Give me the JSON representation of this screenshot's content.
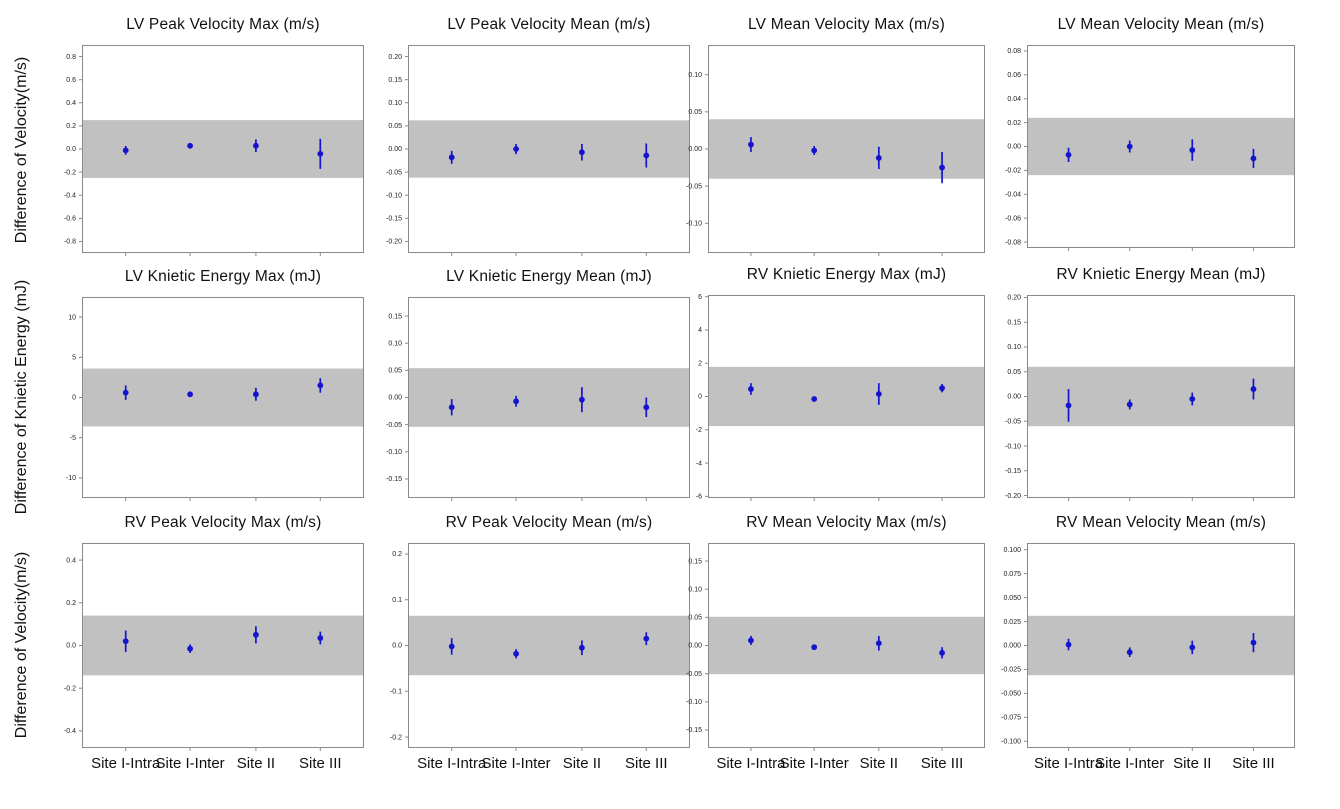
{
  "chart_data": {
    "type": "scatter",
    "subtype": "errorbar-grid",
    "grid": {
      "rows": 3,
      "cols": 4,
      "grid_lines": false,
      "legend": "none"
    },
    "categories": [
      "Site I-Intra",
      "Site I-Inter",
      "Site II",
      "Site III"
    ],
    "row_ylabels": [
      "Difference of Velocity(m/s)",
      "Difference of Knietic Energy (mJ)",
      "Difference of Velocity(m/s)"
    ],
    "style": {
      "marker_color": "#1414cf",
      "band_color": "#c1c1c1",
      "axis_color": "#8a8a8a",
      "tick_text_color": "#222222",
      "background": "#ffffff"
    },
    "charts": [
      {
        "title": "LV Peak Velocity Max (m/s)",
        "ylim": [
          -0.9,
          0.9
        ],
        "ytick_values": [
          0.8,
          0.6,
          0.4,
          0.2,
          0.0,
          -0.2,
          -0.4,
          -0.6,
          -0.8
        ],
        "ytick_labels": [
          "0.8",
          "0.6",
          "0.4",
          "0.2",
          "0.0",
          "-0.2",
          "-0.4",
          "-0.6",
          "-0.8"
        ],
        "band": [
          -0.25,
          0.25
        ],
        "means": [
          -0.012,
          0.028,
          0.028,
          -0.042
        ],
        "errors": [
          0.038,
          0.022,
          0.055,
          0.13
        ]
      },
      {
        "title": "LV Peak Velocity Mean (m/s)",
        "ylim": [
          -0.225,
          0.225
        ],
        "ytick_values": [
          0.2,
          0.15,
          0.1,
          0.05,
          0.0,
          -0.05,
          -0.1,
          -0.15,
          -0.2
        ],
        "ytick_labels": [
          "0.20",
          "0.15",
          "0.10",
          "0.05",
          "0.00",
          "-0.05",
          "-0.10",
          "-0.15",
          "-0.20"
        ],
        "band": [
          -0.062,
          0.062
        ],
        "means": [
          -0.018,
          0.0,
          -0.007,
          -0.014
        ],
        "errors": [
          0.014,
          0.011,
          0.018,
          0.026
        ]
      },
      {
        "title": "LV Mean Velocity Max (m/s)",
        "ylim": [
          -0.14,
          0.14
        ],
        "ytick_values": [
          0.1,
          0.05,
          0.0,
          -0.05,
          -0.1
        ],
        "ytick_labels": [
          "0.10",
          "0.05",
          "0.00",
          "-0.05",
          "-0.10"
        ],
        "band": [
          -0.04,
          0.04
        ],
        "means": [
          0.006,
          -0.002,
          -0.012,
          -0.025
        ],
        "errors": [
          0.01,
          0.006,
          0.015,
          0.021
        ]
      },
      {
        "title": "LV Mean Velocity Mean (m/s)",
        "ylim": [
          -0.085,
          0.085
        ],
        "ytick_values": [
          0.08,
          0.06,
          0.04,
          0.02,
          0.0,
          -0.02,
          -0.04,
          -0.06,
          -0.08
        ],
        "ytick_labels": [
          "0.08",
          "0.06",
          "0.04",
          "0.02",
          "0.00",
          "-0.02",
          "-0.04",
          "-0.06",
          "-0.08"
        ],
        "band": [
          -0.024,
          0.024
        ],
        "means": [
          -0.007,
          0.0,
          -0.003,
          -0.01
        ],
        "errors": [
          0.006,
          0.005,
          0.009,
          0.008
        ]
      },
      {
        "title": "LV Knietic Energy Max (mJ)",
        "ylim": [
          -12.5,
          12.5
        ],
        "ytick_values": [
          10,
          5,
          0,
          -5,
          -10
        ],
        "ytick_labels": [
          "10",
          "5",
          "0",
          "-5",
          "-10"
        ],
        "band": [
          -3.6,
          3.6
        ],
        "means": [
          0.6,
          0.4,
          0.4,
          1.5
        ],
        "errors": [
          0.9,
          0.35,
          0.8,
          0.9
        ]
      },
      {
        "title": "LV Knietic Energy Mean (mJ)",
        "ylim": [
          -0.185,
          0.185
        ],
        "ytick_values": [
          0.15,
          0.1,
          0.05,
          0.0,
          -0.05,
          -0.1,
          -0.15
        ],
        "ytick_labels": [
          "0.15",
          "0.10",
          "0.05",
          "0.00",
          "-0.05",
          "-0.10",
          "-0.15"
        ],
        "band": [
          -0.054,
          0.054
        ],
        "means": [
          -0.018,
          -0.007,
          -0.004,
          -0.018
        ],
        "errors": [
          0.015,
          0.01,
          0.023,
          0.018
        ]
      },
      {
        "title": "RV Knietic Energy Max (mJ)",
        "ylim": [
          -6.1,
          6.1
        ],
        "ytick_values": [
          6,
          4,
          2,
          0,
          -2,
          -4,
          -6
        ],
        "ytick_labels": [
          "6",
          "4",
          "2",
          "0",
          "-2",
          "-4",
          "-6"
        ],
        "band": [
          -1.78,
          1.78
        ],
        "means": [
          0.45,
          -0.15,
          0.15,
          0.5
        ],
        "errors": [
          0.35,
          0.15,
          0.65,
          0.25
        ]
      },
      {
        "title": "RV Knietic Energy Mean (mJ)",
        "ylim": [
          -0.205,
          0.205
        ],
        "ytick_values": [
          0.2,
          0.15,
          0.1,
          0.05,
          0.0,
          -0.05,
          -0.1,
          -0.15,
          -0.2
        ],
        "ytick_labels": [
          "0.20",
          "0.15",
          "0.10",
          "0.05",
          "0.00",
          "-0.05",
          "-0.10",
          "-0.15",
          "-0.20"
        ],
        "band": [
          -0.06,
          0.06
        ],
        "means": [
          -0.018,
          -0.016,
          -0.005,
          0.015
        ],
        "errors": [
          0.033,
          0.01,
          0.013,
          0.021
        ]
      },
      {
        "title": "RV Peak Velocity Max (m/s)",
        "ylim": [
          -0.48,
          0.48
        ],
        "ytick_values": [
          0.4,
          0.2,
          0.0,
          -0.2,
          -0.4
        ],
        "ytick_labels": [
          "0.4",
          "0.2",
          "0.0",
          "-0.2",
          "-0.4"
        ],
        "band": [
          -0.14,
          0.14
        ],
        "means": [
          0.02,
          -0.015,
          0.05,
          0.035
        ],
        "errors": [
          0.05,
          0.02,
          0.04,
          0.03
        ]
      },
      {
        "title": "RV Peak Velocity Mean (m/s)",
        "ylim": [
          -0.224,
          0.224
        ],
        "ytick_values": [
          0.2,
          0.1,
          0.0,
          -0.1,
          -0.2
        ],
        "ytick_labels": [
          "0.2",
          "0.1",
          "0.0",
          "-0.1",
          "-0.2"
        ],
        "band": [
          -0.065,
          0.065
        ],
        "means": [
          -0.002,
          -0.018,
          -0.005,
          0.015
        ],
        "errors": [
          0.018,
          0.01,
          0.016,
          0.014
        ]
      },
      {
        "title": "RV Mean Velocity Max (m/s)",
        "ylim": [
          -0.182,
          0.182
        ],
        "ytick_values": [
          0.15,
          0.1,
          0.05,
          0.0,
          -0.05,
          -0.1,
          -0.15
        ],
        "ytick_labels": [
          "0.15",
          "0.10",
          "0.05",
          "0.00",
          "-0.05",
          "-0.10",
          "-0.15"
        ],
        "band": [
          -0.051,
          0.051
        ],
        "means": [
          0.009,
          -0.003,
          0.004,
          -0.013
        ],
        "errors": [
          0.008,
          0.004,
          0.013,
          0.01
        ]
      },
      {
        "title": "RV Mean Velocity Mean (m/s)",
        "ylim": [
          -0.107,
          0.107
        ],
        "ytick_values": [
          0.1,
          0.075,
          0.05,
          0.025,
          0.0,
          -0.025,
          -0.05,
          -0.075,
          -0.1
        ],
        "ytick_labels": [
          "0.100",
          "0.075",
          "0.050",
          "0.025",
          "0.000",
          "-0.025",
          "-0.050",
          "-0.075",
          "-0.100"
        ],
        "band": [
          -0.031,
          0.031
        ],
        "means": [
          0.001,
          -0.007,
          -0.002,
          0.003
        ],
        "errors": [
          0.006,
          0.005,
          0.007,
          0.01
        ]
      }
    ]
  }
}
